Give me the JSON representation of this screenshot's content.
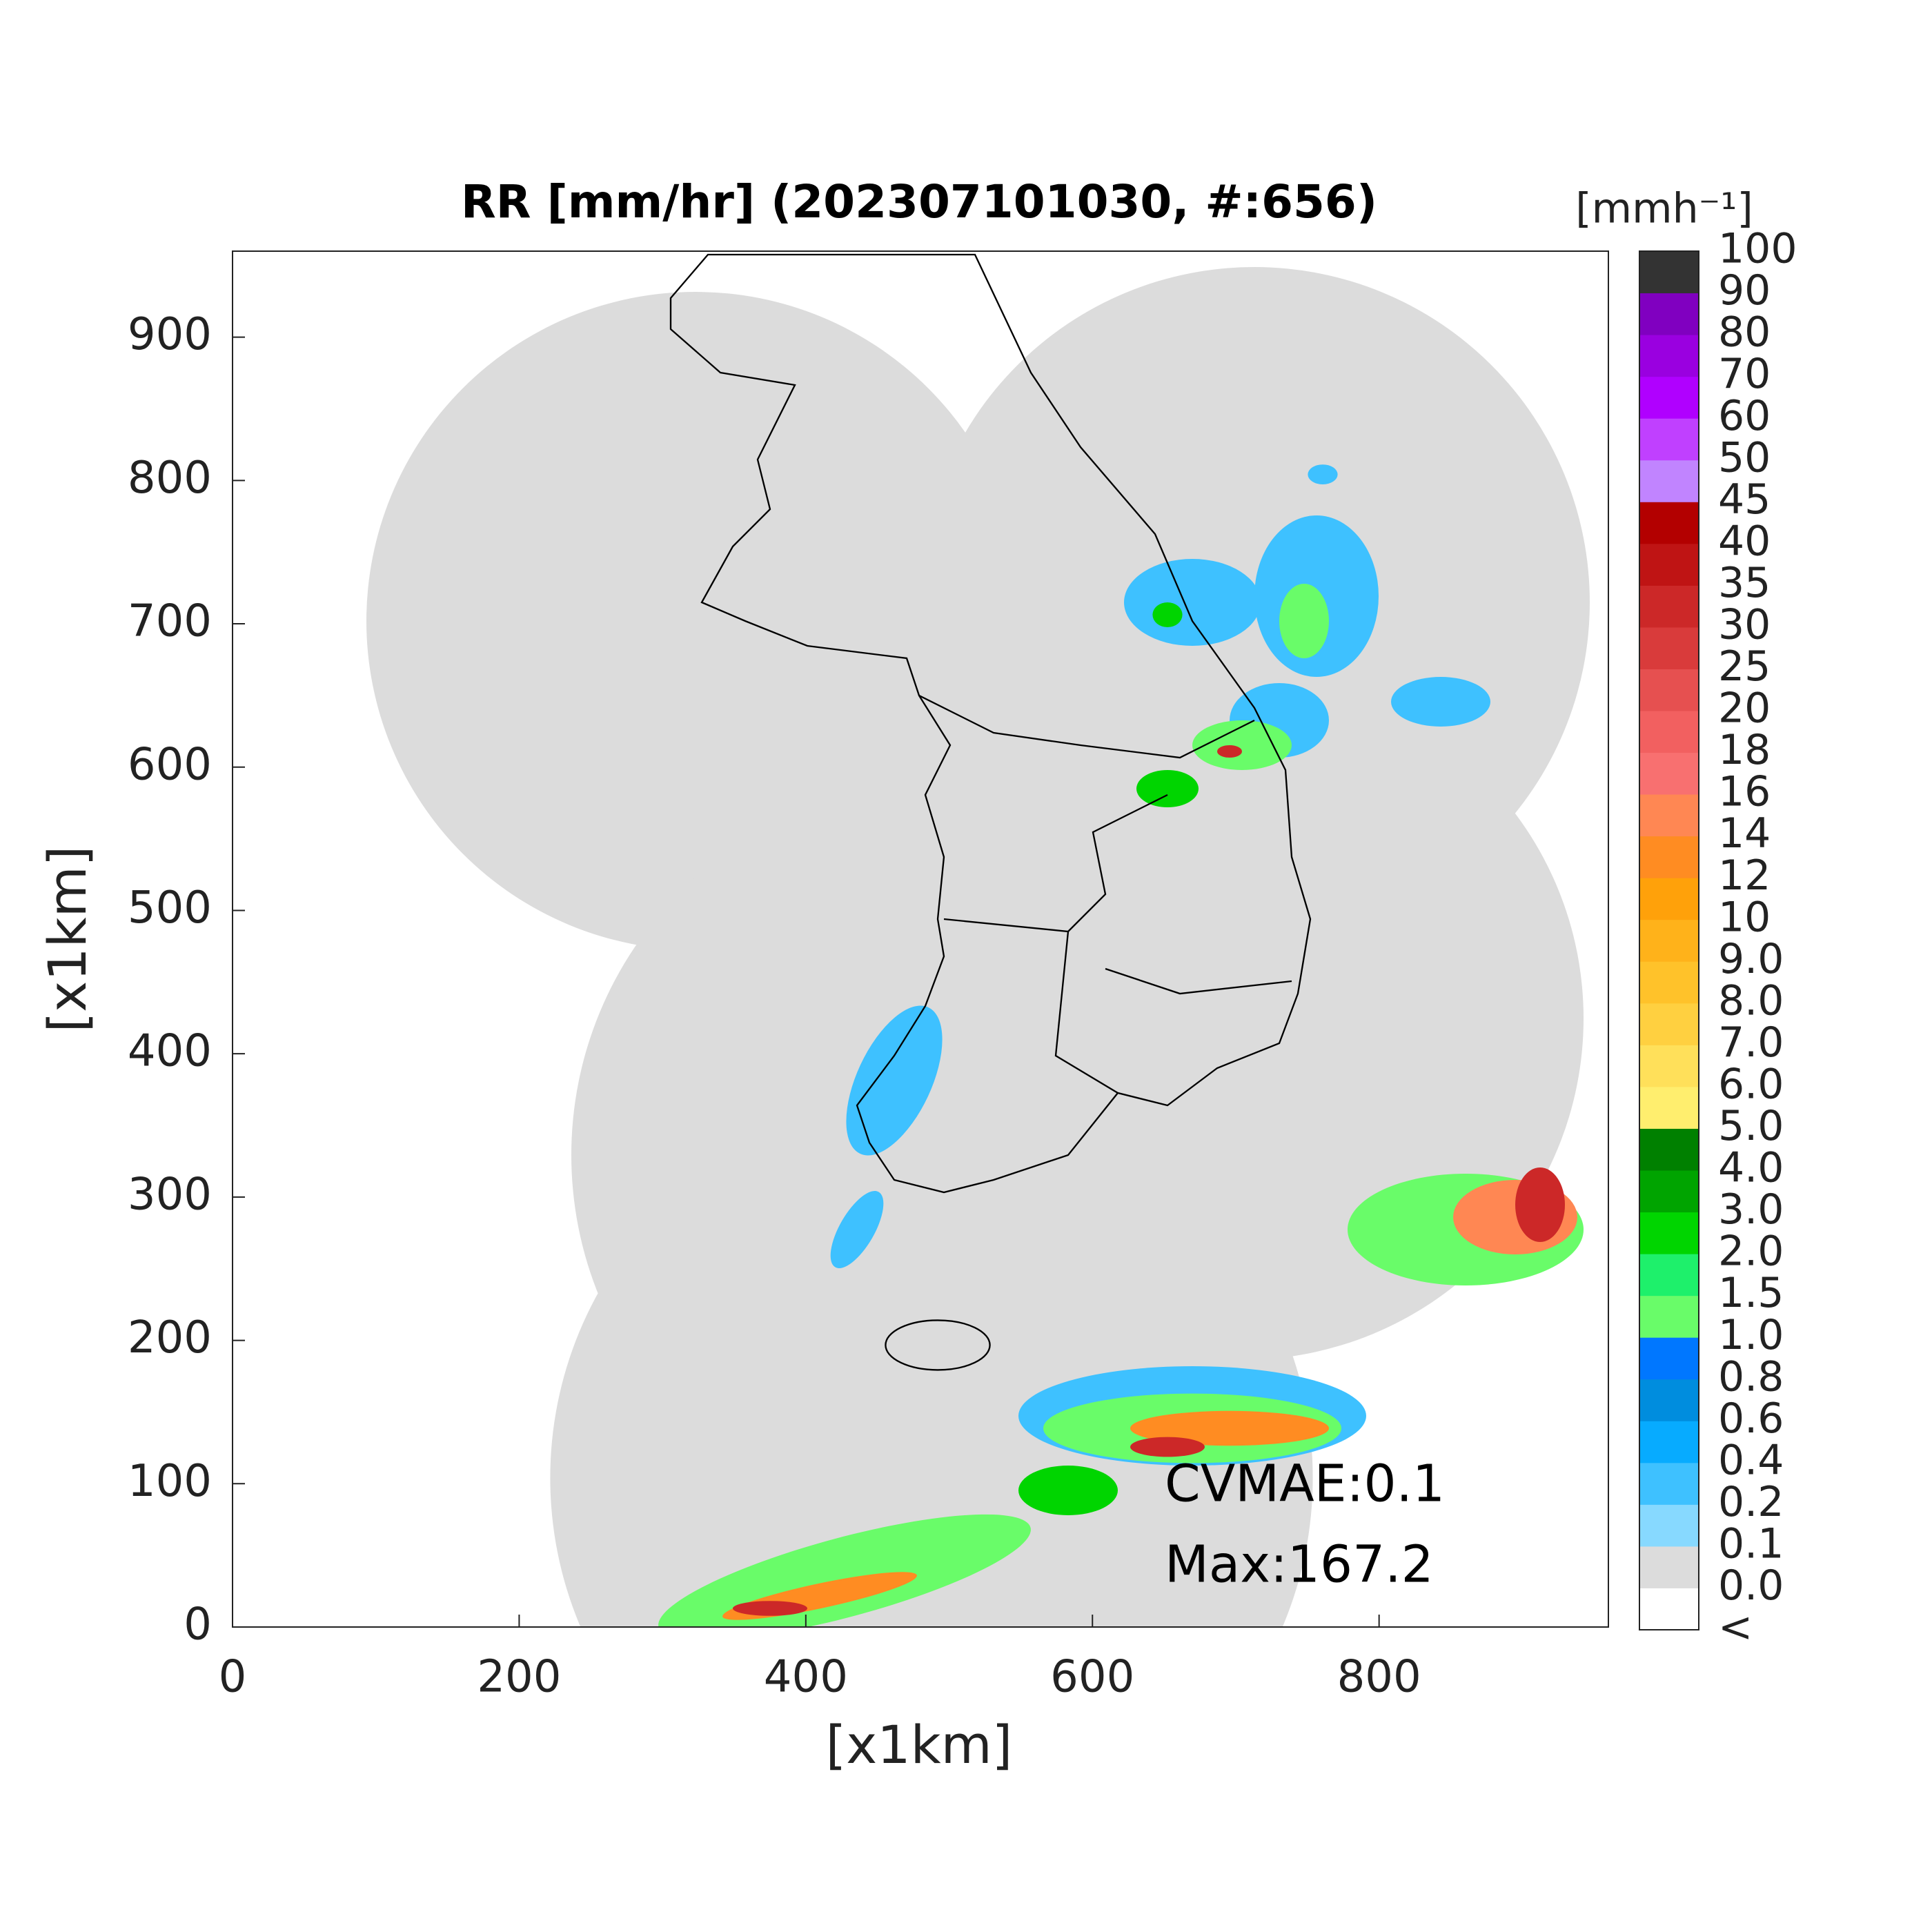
{
  "chart_data": {
    "type": "radar-map",
    "title": "RR [mm/hr] (202307101030, #:656)",
    "x_label": "[x1km]",
    "y_label": "[x1km]",
    "xlim": [
      0,
      960
    ],
    "ylim": [
      0,
      960
    ],
    "xticks": [
      0,
      200,
      400,
      600,
      800
    ],
    "yticks": [
      0,
      100,
      200,
      300,
      400,
      500,
      600,
      700,
      800,
      900
    ],
    "annotations": [
      "CVMAE:0.1",
      "Max:167.2"
    ],
    "colorbar": {
      "label": "[mmh⁻¹]",
      "labels": [
        "<",
        "0.0",
        "0.1",
        "0.2",
        "0.4",
        "0.6",
        "0.8",
        "1.0",
        "1.5",
        "2.0",
        "3.0",
        "4.0",
        "5.0",
        "6.0",
        "7.0",
        "8.0",
        "9.0",
        "10",
        "12",
        "14",
        "16",
        "18",
        "20",
        "25",
        "30",
        "35",
        "40",
        "45",
        "50",
        "60",
        "70",
        "80",
        "90",
        "100"
      ],
      "colors": [
        "#ffffff",
        "#dcdcdc",
        "#87d9ff",
        "#3ec1ff",
        "#07abff",
        "#008dde",
        "#0077ff",
        "#69fc69",
        "#1ef06b",
        "#00d500",
        "#00a400",
        "#008000",
        "#ffee6e",
        "#ffe05a",
        "#ffd040",
        "#ffc22a",
        "#ffb21a",
        "#ffa10a",
        "#ff8c22",
        "#ff8753",
        "#f87070",
        "#f26060",
        "#e65050",
        "#d93b3b",
        "#cc2828",
        "#bf1414",
        "#b30000",
        "#c184ff",
        "#c040ff",
        "#b000ff",
        "#9a00e0",
        "#8000c0",
        "#333333"
      ]
    }
  }
}
